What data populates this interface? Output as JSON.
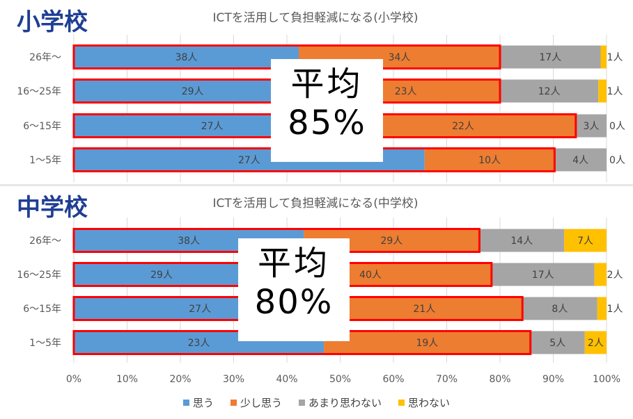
{
  "chart_data": [
    {
      "type": "bar",
      "orientation": "horizontal",
      "stacked": "percent",
      "panel_label": "小学校",
      "title": "ICTを活用して負担軽減になる(小学校)",
      "categories": [
        "26年～",
        "16～25年",
        "6～15年",
        "1～5年"
      ],
      "series": [
        {
          "name": "思う",
          "values": [
            38,
            29,
            27,
            27
          ],
          "labels": [
            "38人",
            "29人",
            "27人",
            "27人"
          ],
          "color": "#5b9bd5"
        },
        {
          "name": "少し思う",
          "values": [
            34,
            23,
            22,
            10
          ],
          "labels": [
            "34人",
            "23人",
            "22人",
            "10人"
          ],
          "color": "#ed7d31"
        },
        {
          "name": "あまり思わない",
          "values": [
            17,
            12,
            3,
            4
          ],
          "labels": [
            "17人",
            "12人",
            "3人",
            "4人"
          ],
          "color": "#a5a5a5"
        },
        {
          "name": "思わない",
          "values": [
            1,
            1,
            0,
            0
          ],
          "labels": [
            "1人",
            "1人",
            "0人",
            "0人"
          ],
          "color": "#ffc000"
        }
      ],
      "average": {
        "line1": "平均",
        "line2": "85%"
      }
    },
    {
      "type": "bar",
      "orientation": "horizontal",
      "stacked": "percent",
      "panel_label": "中学校",
      "title": "ICTを活用して負担軽減になる(中学校)",
      "categories": [
        "26年～",
        "16～25年",
        "6～15年",
        "1～5年"
      ],
      "series": [
        {
          "name": "思う",
          "values": [
            38,
            29,
            27,
            23
          ],
          "labels": [
            "38人",
            "29人",
            "27人",
            "23人"
          ],
          "color": "#5b9bd5"
        },
        {
          "name": "少し思う",
          "values": [
            29,
            40,
            21,
            19
          ],
          "labels": [
            "29人",
            "40人",
            "21人",
            "19人"
          ],
          "color": "#ed7d31"
        },
        {
          "name": "あまり思わない",
          "values": [
            14,
            17,
            8,
            5
          ],
          "labels": [
            "14人",
            "17人",
            "8人",
            "5人"
          ],
          "color": "#a5a5a5"
        },
        {
          "name": "思わない",
          "values": [
            7,
            2,
            1,
            2
          ],
          "labels": [
            "7人",
            "2人",
            "1人",
            "2人"
          ],
          "color": "#ffc000"
        }
      ],
      "average": {
        "line1": "平均",
        "line2": "80%"
      }
    }
  ],
  "x_axis": {
    "ticks": [
      "0%",
      "10%",
      "20%",
      "30%",
      "40%",
      "50%",
      "60%",
      "70%",
      "80%",
      "90%",
      "100%"
    ],
    "range": [
      0,
      100
    ]
  },
  "legend": {
    "position": "bottom",
    "items": [
      {
        "name": "思う",
        "color": "#5b9bd5"
      },
      {
        "name": "少し思う",
        "color": "#ed7d31"
      },
      {
        "name": "あまり思わない",
        "color": "#a5a5a5"
      },
      {
        "name": "思わない",
        "color": "#ffc000"
      }
    ]
  },
  "highlight_color": "#ff0000",
  "panel_label_color": "#1f3e94"
}
